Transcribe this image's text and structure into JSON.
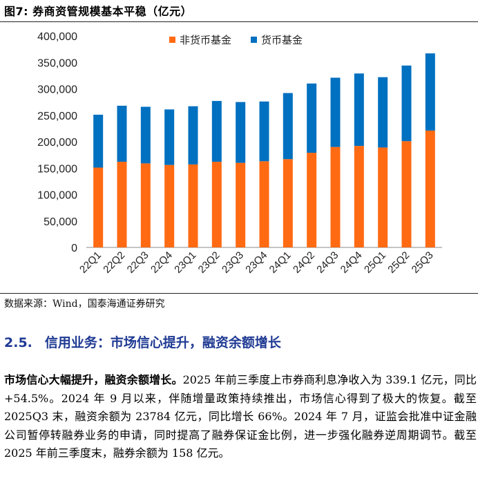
{
  "figure_title": "图7: 券商资管规模基本平稳（亿元）",
  "source_note": "数据来源：Wind，国泰海通证券研究",
  "section": {
    "number": "2.5.",
    "title": "信用业务：市场信心提升，融资余额增长"
  },
  "paragraph": {
    "lead": "市场信心大幅提升，融资余额增长。",
    "text": "2025 年前三季度上市券商利息净收入为 339.1 亿元，同比+54.5%。2024 年 9 月以来，伴随增量政策持续推出，市场信心得到了极大的恢复。截至 2025Q3 末，融资余额为 23784 亿元，同比增长 66%。2024 年 7 月，证监会批准中证金融公司暂停转融券业务的申请，同时提高了融券保证金比例，进一步强化融券逆周期调节。截至 2025 年前三季度末，融券余额为 158 亿元。"
  },
  "chart_data": {
    "type": "bar",
    "stacked": true,
    "categories": [
      "22Q1",
      "22Q2",
      "22Q3",
      "22Q4",
      "23Q1",
      "23Q2",
      "23Q3",
      "23Q4",
      "24Q1",
      "24Q2",
      "24Q3",
      "24Q4",
      "25Q1",
      "25Q2",
      "25Q3"
    ],
    "series": [
      {
        "name": "非货币基金",
        "color": "#ff6a13",
        "values": [
          151000,
          162000,
          159000,
          156000,
          157000,
          162000,
          160000,
          163000,
          167000,
          179000,
          190000,
          192000,
          189000,
          201000,
          221000
        ]
      },
      {
        "name": "货币基金",
        "color": "#0070c0",
        "values": [
          100000,
          106000,
          107000,
          105000,
          110000,
          115000,
          115000,
          113000,
          125000,
          131000,
          131000,
          137000,
          133000,
          143000,
          146000
        ]
      }
    ],
    "ylim": [
      0,
      400000
    ],
    "yticks": [
      "0",
      "50,000",
      "100,000",
      "150,000",
      "200,000",
      "250,000",
      "300,000",
      "350,000",
      "400,000"
    ],
    "grid": false,
    "legend_position": "top-right"
  }
}
